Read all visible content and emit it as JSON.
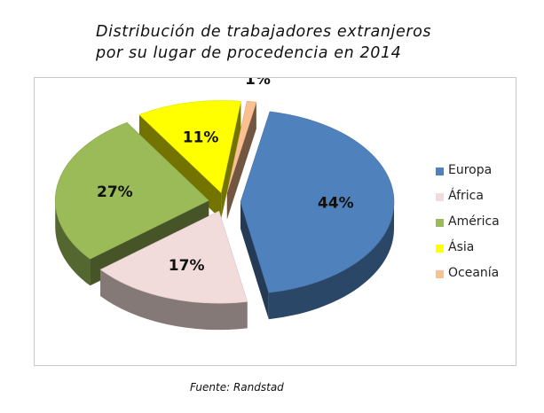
{
  "title": {
    "line1": "Distribución de trabajadores extranjeros",
    "line2": "por su lugar de procedencia en 2014"
  },
  "source": "Fuente: Randstad",
  "chart_data": {
    "type": "pie",
    "title": "Distribución de trabajadores extranjeros por su lugar de procedencia en 2014",
    "style": "3d-exploded",
    "legend_position": "right",
    "categories": [
      "Europa",
      "África",
      "América",
      "Ásia",
      "Oceanía"
    ],
    "values": [
      44,
      17,
      27,
      11,
      1
    ],
    "labels": [
      "44%",
      "17%",
      "27%",
      "11%",
      "1%"
    ],
    "colors": [
      "#4f81bd",
      "#f2dcdb",
      "#9bbb59",
      "#ffff00",
      "#fac090"
    ]
  }
}
